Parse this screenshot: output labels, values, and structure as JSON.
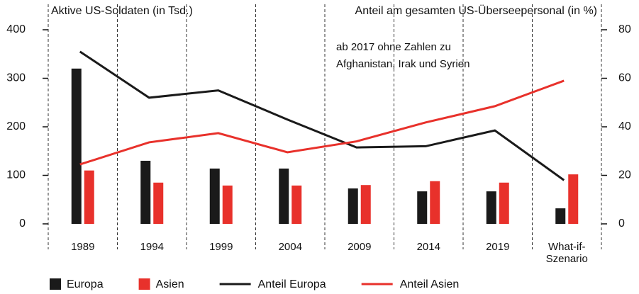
{
  "chart_data": {
    "type": "bar_line",
    "y_label": "Aktive US-Soldaten (in Tsd.)",
    "y2_label": "Anteil am gesamten US-Überseepersonal (in %)",
    "annotation": [
      "ab 2017 ohne Zahlen zu",
      "Afghanistan, Irak und Syrien"
    ],
    "categories": [
      "1989",
      "1994",
      "1999",
      "2004",
      "2009",
      "2014",
      "2019",
      "What-if-Szenario"
    ],
    "series": [
      {
        "name": "Europa",
        "kind": "bar",
        "color": "#1a1a1a",
        "values": [
          320,
          130,
          114,
          114,
          73,
          67,
          67,
          32
        ]
      },
      {
        "name": "Asien",
        "kind": "bar",
        "color": "#e8312b",
        "values": [
          110,
          85,
          79,
          79,
          80,
          88,
          85,
          102
        ]
      },
      {
        "name": "Anteil Europa",
        "kind": "line",
        "axis": "y2",
        "color": "#1a1a1a",
        "values": [
          71,
          52,
          55,
          43,
          31.5,
          32,
          38.5,
          18
        ]
      },
      {
        "name": "Anteil Asien",
        "kind": "line",
        "axis": "y2",
        "color": "#e8312b",
        "values": [
          24.5,
          33.6,
          37.4,
          29.5,
          34,
          41.8,
          48.5,
          59
        ]
      }
    ],
    "ylim": [
      0,
      400
    ],
    "yticks": [
      0,
      100,
      200,
      300,
      400
    ],
    "y2lim": [
      0,
      80
    ],
    "y2ticks": [
      0,
      20,
      40,
      60,
      80
    ]
  }
}
